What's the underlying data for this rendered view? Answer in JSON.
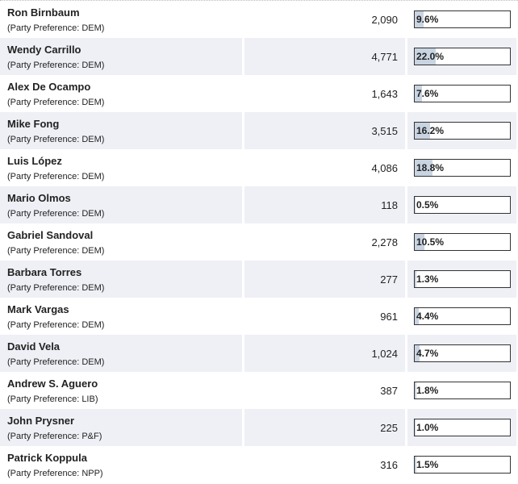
{
  "table": {
    "rows": [
      {
        "name": "Ron Birnbaum",
        "party": "(Party Preference: DEM)",
        "votes": "2,090",
        "percent": {
          "value": 9.6,
          "label": "9.6%"
        }
      },
      {
        "name": "Wendy Carrillo",
        "party": "(Party Preference: DEM)",
        "votes": "4,771",
        "percent": {
          "value": 22.0,
          "label": "22.0%"
        }
      },
      {
        "name": "Alex De Ocampo",
        "party": "(Party Preference: DEM)",
        "votes": "1,643",
        "percent": {
          "value": 7.6,
          "label": "7.6%"
        }
      },
      {
        "name": "Mike Fong",
        "party": "(Party Preference: DEM)",
        "votes": "3,515",
        "percent": {
          "value": 16.2,
          "label": "16.2%"
        }
      },
      {
        "name": "Luis López",
        "party": "(Party Preference: DEM)",
        "votes": "4,086",
        "percent": {
          "value": 18.8,
          "label": "18.8%"
        }
      },
      {
        "name": "Mario Olmos",
        "party": "(Party Preference: DEM)",
        "votes": "118",
        "percent": {
          "value": 0.5,
          "label": "0.5%"
        }
      },
      {
        "name": "Gabriel Sandoval",
        "party": "(Party Preference: DEM)",
        "votes": "2,278",
        "percent": {
          "value": 10.5,
          "label": "10.5%"
        }
      },
      {
        "name": "Barbara Torres",
        "party": "(Party Preference: DEM)",
        "votes": "277",
        "percent": {
          "value": 1.3,
          "label": "1.3%"
        }
      },
      {
        "name": "Mark Vargas",
        "party": "(Party Preference: DEM)",
        "votes": "961",
        "percent": {
          "value": 4.4,
          "label": "4.4%"
        }
      },
      {
        "name": "David Vela",
        "party": "(Party Preference: DEM)",
        "votes": "1,024",
        "percent": {
          "value": 4.7,
          "label": "4.7%"
        }
      },
      {
        "name": "Andrew S. Aguero",
        "party": "(Party Preference: LIB)",
        "votes": "387",
        "percent": {
          "value": 1.8,
          "label": "1.8%"
        }
      },
      {
        "name": "John Prysner",
        "party": "(Party Preference: P&F)",
        "votes": "225",
        "percent": {
          "value": 1.0,
          "label": "1.0%"
        }
      },
      {
        "name": "Patrick Koppula",
        "party": "(Party Preference: NPP)",
        "votes": "316",
        "percent": {
          "value": 1.5,
          "label": "1.5%"
        }
      }
    ]
  }
}
